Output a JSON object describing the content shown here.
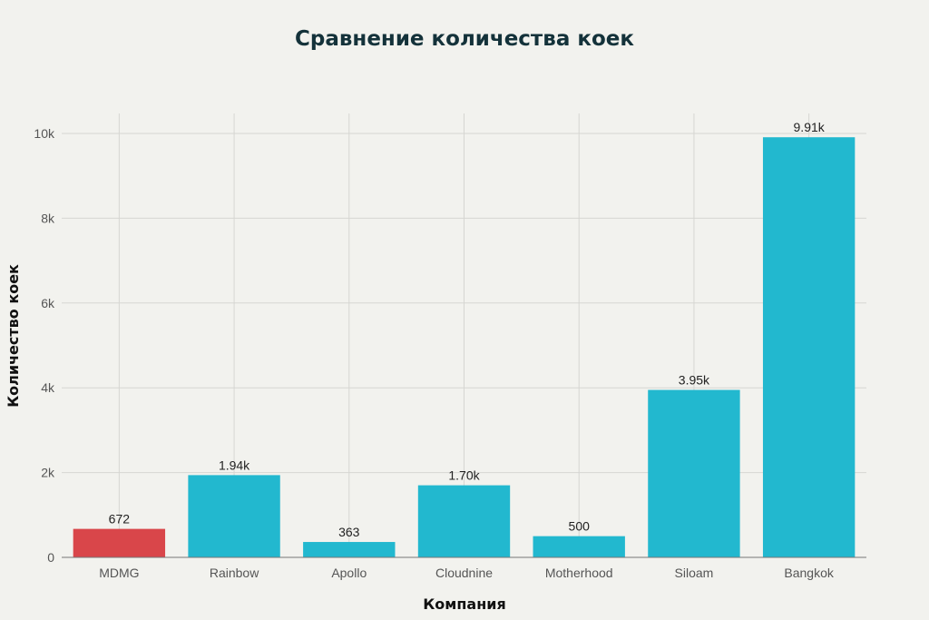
{
  "chart_data": {
    "type": "bar",
    "title": "Сравнение количества коек",
    "xlabel": "Компания",
    "ylabel": "Количество коек",
    "categories": [
      "MDMG",
      "Rainbow",
      "Apollo",
      "Cloudnine",
      "Motherhood",
      "Siloam",
      "Bangkok"
    ],
    "values": [
      672,
      1940,
      363,
      1700,
      500,
      3950,
      9910
    ],
    "data_labels": [
      "672",
      "1.94k",
      "363",
      "1.70k",
      "500",
      "3.95k",
      "9.91k"
    ],
    "bar_colors": [
      "#d9464a",
      "#22b8cf",
      "#22b8cf",
      "#22b8cf",
      "#22b8cf",
      "#22b8cf",
      "#22b8cf"
    ],
    "ylim": [
      0,
      10500
    ],
    "yticks": [
      0,
      2000,
      4000,
      6000,
      8000,
      10000
    ],
    "ytick_labels": [
      "0",
      "2k",
      "4k",
      "6k",
      "8k",
      "10k"
    ],
    "grid": true,
    "legend": "none"
  }
}
